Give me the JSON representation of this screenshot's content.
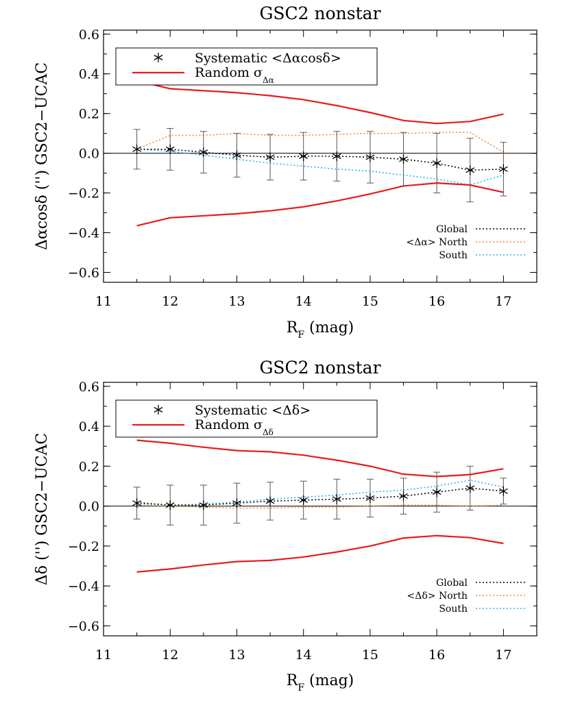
{
  "chart_data": [
    {
      "type": "line",
      "title": "GSC2 nonstar",
      "xlabel": "R_F (mag)",
      "xlabel_main": "R",
      "xlabel_sub": "F",
      "xlabel_rest": " (mag)",
      "ylabel": "Δαcosδ ('') GSC2−UCAC",
      "xlim": [
        11,
        17.5
      ],
      "ylim": [
        -0.65,
        0.62
      ],
      "xticks": [
        11,
        12,
        13,
        14,
        15,
        16,
        17
      ],
      "xtick_labels": [
        "11",
        "12",
        "13",
        "14",
        "15",
        "16",
        "17"
      ],
      "yticks": [
        -0.6,
        -0.4,
        -0.2,
        0.0,
        0.2,
        0.4,
        0.6
      ],
      "ytick_labels": [
        "−0.6",
        "−0.4",
        "−0.2",
        "0.0",
        "0.2",
        "0.4",
        "0.6"
      ],
      "x": [
        11.5,
        12.0,
        12.5,
        13.0,
        13.5,
        14.0,
        14.5,
        15.0,
        15.5,
        16.0,
        16.5,
        17.0
      ],
      "systematic": {
        "legend": "Systematic <Δαcosδ>",
        "values": [
          0.02,
          0.02,
          0.005,
          -0.01,
          -0.02,
          -0.015,
          -0.015,
          -0.02,
          -0.03,
          -0.05,
          -0.085,
          -0.08
        ],
        "errors": [
          0.1,
          0.105,
          0.105,
          0.11,
          0.115,
          0.12,
          0.125,
          0.13,
          0.135,
          0.15,
          0.16,
          0.135
        ]
      },
      "random": {
        "legend_main": "Random σ",
        "legend_sub": "Δα",
        "values": [
          0.365,
          0.325,
          0.315,
          0.305,
          0.29,
          0.27,
          0.24,
          0.205,
          0.165,
          0.15,
          0.16,
          0.197
        ]
      },
      "series": [
        {
          "name": "Global",
          "color": "#000000",
          "values": [
            0.02,
            0.02,
            0.005,
            -0.01,
            -0.02,
            -0.015,
            -0.015,
            -0.02,
            -0.03,
            -0.05,
            -0.085,
            -0.08
          ]
        },
        {
          "name": "<Δα> North",
          "color": "#f08a2c",
          "values": [
            0.02,
            0.09,
            0.09,
            0.1,
            0.09,
            0.09,
            0.095,
            0.1,
            0.1,
            0.105,
            0.105,
            0.005
          ]
        },
        {
          "name": "South",
          "color": "#2ab4e6",
          "values": [
            0.02,
            0.01,
            -0.01,
            -0.03,
            -0.05,
            -0.065,
            -0.08,
            -0.09,
            -0.11,
            -0.13,
            -0.16,
            -0.11
          ]
        }
      ],
      "random_color": "#e8191e",
      "subleg_prefix": "<Δα>",
      "legend_placement": "top-left",
      "series_legend_placement": "bottom-right",
      "zero_line": true
    },
    {
      "type": "line",
      "title": "GSC2 nonstar",
      "xlabel": "R_F (mag)",
      "xlabel_main": "R",
      "xlabel_sub": "F",
      "xlabel_rest": " (mag)",
      "ylabel": "Δδ ('') GSC2−UCAC",
      "xlim": [
        11,
        17.5
      ],
      "ylim": [
        -0.65,
        0.62
      ],
      "xticks": [
        11,
        12,
        13,
        14,
        15,
        16,
        17
      ],
      "xtick_labels": [
        "11",
        "12",
        "13",
        "14",
        "15",
        "16",
        "17"
      ],
      "yticks": [
        -0.6,
        -0.4,
        -0.2,
        0.0,
        0.2,
        0.4,
        0.6
      ],
      "ytick_labels": [
        "−0.6",
        "−0.4",
        "−0.2",
        "0.0",
        "0.2",
        "0.4",
        "0.6"
      ],
      "x": [
        11.5,
        12.0,
        12.5,
        13.0,
        13.5,
        14.0,
        14.5,
        15.0,
        15.5,
        16.0,
        16.5,
        17.0
      ],
      "systematic": {
        "legend": "Systematic <Δδ>",
        "values": [
          0.015,
          0.005,
          0.005,
          0.015,
          0.025,
          0.03,
          0.035,
          0.04,
          0.05,
          0.07,
          0.09,
          0.075
        ],
        "errors": [
          0.08,
          0.1,
          0.1,
          0.1,
          0.095,
          0.095,
          0.1,
          0.095,
          0.09,
          0.1,
          0.11,
          0.065
        ]
      },
      "random": {
        "legend_main": "Random σ",
        "legend_sub": "Δδ",
        "values": [
          0.33,
          0.315,
          0.295,
          0.278,
          0.272,
          0.255,
          0.23,
          0.2,
          0.16,
          0.148,
          0.158,
          0.187
        ]
      },
      "series": [
        {
          "name": "Global",
          "color": "#000000",
          "values": [
            0.015,
            0.005,
            0.005,
            0.015,
            0.025,
            0.03,
            0.035,
            0.04,
            0.05,
            0.07,
            0.09,
            0.075
          ]
        },
        {
          "name": "<Δδ> North",
          "color": "#f08a2c",
          "values": [
            0.005,
            0.0,
            -0.005,
            -0.01,
            -0.01,
            -0.005,
            -0.005,
            0.0,
            0.005,
            0.005,
            0.0,
            0.005
          ]
        },
        {
          "name": "South",
          "color": "#2ab4e6",
          "values": [
            0.02,
            0.005,
            0.01,
            0.02,
            0.035,
            0.045,
            0.055,
            0.07,
            0.08,
            0.1,
            0.13,
            0.095
          ]
        }
      ],
      "random_color": "#e8191e",
      "subleg_prefix": "<Δδ>",
      "legend_placement": "top-left",
      "series_legend_placement": "bottom-right",
      "zero_line": true
    }
  ]
}
